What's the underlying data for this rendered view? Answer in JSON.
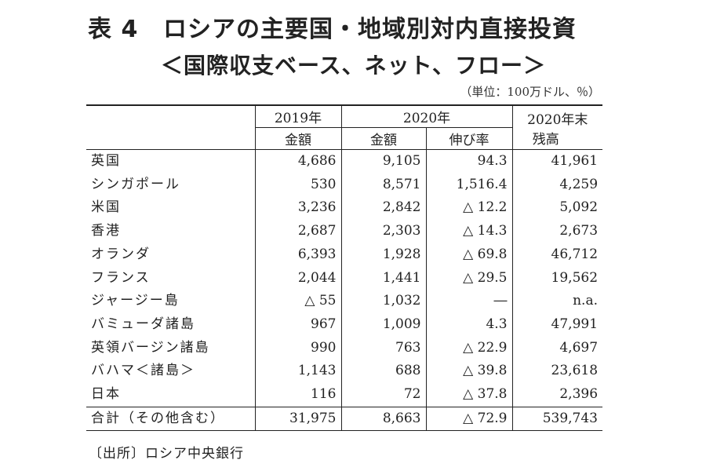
{
  "title": {
    "label": "表 4",
    "line1": "ロシアの主要国・地域別対内直接投資",
    "line2": "＜国際収支ベース、ネット、フロー＞"
  },
  "unit": "（単位：100万ドル、％）",
  "header": {
    "y2019": "2019年",
    "y2020": "2020年",
    "balance_l1": "2020年末",
    "balance_l2": "残高",
    "amount_2019": "金額",
    "amount_2020": "金額",
    "growth": "伸び率"
  },
  "rows": [
    {
      "name": "英国",
      "v2019": "4,686",
      "v2020": "9,105",
      "growth": "94.3",
      "balance": "41,961"
    },
    {
      "name": "シンガポール",
      "v2019": "530",
      "v2020": "8,571",
      "growth": "1,516.4",
      "balance": "4,259"
    },
    {
      "name": "米国",
      "v2019": "3,236",
      "v2020": "2,842",
      "growth": "△ 12.2",
      "balance": "5,092"
    },
    {
      "name": "香港",
      "v2019": "2,687",
      "v2020": "2,303",
      "growth": "△ 14.3",
      "balance": "2,673"
    },
    {
      "name": "オランダ",
      "v2019": "6,393",
      "v2020": "1,928",
      "growth": "△ 69.8",
      "balance": "46,712"
    },
    {
      "name": "フランス",
      "v2019": "2,044",
      "v2020": "1,441",
      "growth": "△ 29.5",
      "balance": "19,562"
    },
    {
      "name": "ジャージー島",
      "v2019": "△ 55",
      "v2020": "1,032",
      "growth": "―",
      "balance": "n.a."
    },
    {
      "name": "バミューダ諸島",
      "v2019": "967",
      "v2020": "1,009",
      "growth": "4.3",
      "balance": "47,991"
    },
    {
      "name": "英領バージン諸島",
      "v2019": "990",
      "v2020": "763",
      "growth": "△ 22.9",
      "balance": "4,697"
    },
    {
      "name": "バハマ＜諸島＞",
      "v2019": "1,143",
      "v2020": "688",
      "growth": "△ 39.8",
      "balance": "23,618"
    },
    {
      "name": "日本",
      "v2019": "116",
      "v2020": "72",
      "growth": "△ 37.8",
      "balance": "2,396"
    }
  ],
  "total": {
    "name": "合計（その他含む）",
    "v2019": "31,975",
    "v2020": "8,663",
    "growth": "△ 72.9",
    "balance": "539,743"
  },
  "source": "〔出所〕ロシア中央銀行"
}
